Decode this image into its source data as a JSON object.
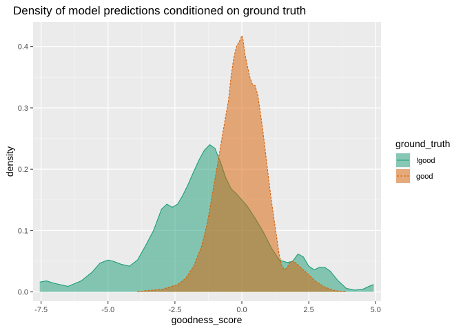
{
  "chart_data": {
    "type": "area",
    "title": "Density of model predictions conditioned on ground truth",
    "xlabel": "goodness_score",
    "ylabel": "density",
    "xlim": [
      -7.8,
      5.2
    ],
    "ylim": [
      -0.015,
      0.44
    ],
    "x_ticks": [
      -7.5,
      -5.0,
      -2.5,
      0.0,
      2.5,
      5.0
    ],
    "x_tick_labels": [
      "-7.5",
      "-5.0",
      "-2.5",
      "0.0",
      "2.5",
      "5.0"
    ],
    "y_ticks": [
      0.0,
      0.1,
      0.2,
      0.3,
      0.4
    ],
    "y_tick_labels": [
      "0.0",
      "0.1",
      "0.2",
      "0.3",
      "0.4"
    ],
    "grid": true,
    "legend": {
      "title": "ground_truth",
      "placement": "right"
    },
    "series": [
      {
        "name": "!good",
        "fill": "#1b9e77",
        "line": "#1b9e77",
        "linetype": "solid",
        "x": [
          -7.55,
          -7.3,
          -7.0,
          -6.5,
          -6.0,
          -5.6,
          -5.3,
          -5.0,
          -4.8,
          -4.5,
          -4.2,
          -3.9,
          -3.6,
          -3.3,
          -3.0,
          -2.8,
          -2.6,
          -2.4,
          -2.2,
          -2.0,
          -1.8,
          -1.6,
          -1.4,
          -1.2,
          -1.0,
          -0.9,
          -0.8,
          -0.6,
          -0.4,
          -0.2,
          0.0,
          0.2,
          0.5,
          0.8,
          1.1,
          1.4,
          1.7,
          1.9,
          2.1,
          2.3,
          2.5,
          2.7,
          2.9,
          3.1,
          3.3,
          3.6,
          3.9,
          4.2,
          4.5,
          4.8,
          4.93
        ],
        "y": [
          0.016,
          0.018,
          0.014,
          0.009,
          0.018,
          0.032,
          0.047,
          0.052,
          0.05,
          0.045,
          0.042,
          0.052,
          0.075,
          0.1,
          0.135,
          0.143,
          0.138,
          0.143,
          0.158,
          0.176,
          0.196,
          0.215,
          0.231,
          0.24,
          0.234,
          0.222,
          0.212,
          0.186,
          0.168,
          0.16,
          0.15,
          0.14,
          0.12,
          0.098,
          0.072,
          0.052,
          0.048,
          0.05,
          0.062,
          0.057,
          0.042,
          0.036,
          0.04,
          0.04,
          0.034,
          0.018,
          0.006,
          0.003,
          0.004,
          0.01,
          0.012
        ]
      },
      {
        "name": "good",
        "fill": "#d95f02",
        "line": "#d95f02",
        "linetype": "dashed",
        "x": [
          -3.9,
          -3.6,
          -3.3,
          -3.0,
          -2.7,
          -2.4,
          -2.1,
          -1.8,
          -1.5,
          -1.3,
          -1.1,
          -0.9,
          -0.7,
          -0.5,
          -0.4,
          -0.3,
          -0.2,
          -0.1,
          -0.05,
          0.0,
          0.05,
          0.1,
          0.2,
          0.3,
          0.4,
          0.5,
          0.6,
          0.7,
          0.8,
          0.9,
          1.0,
          1.1,
          1.2,
          1.3,
          1.4,
          1.5,
          1.6,
          1.7,
          1.8,
          1.9,
          2.0,
          2.2,
          2.5,
          2.8,
          3.1,
          3.4,
          3.7,
          3.9
        ],
        "y": [
          0.0,
          0.002,
          0.003,
          0.004,
          0.008,
          0.012,
          0.022,
          0.042,
          0.075,
          0.11,
          0.16,
          0.21,
          0.262,
          0.312,
          0.352,
          0.382,
          0.4,
          0.408,
          0.412,
          0.418,
          0.41,
          0.392,
          0.37,
          0.35,
          0.338,
          0.336,
          0.32,
          0.29,
          0.258,
          0.222,
          0.185,
          0.15,
          0.12,
          0.09,
          0.06,
          0.042,
          0.036,
          0.04,
          0.048,
          0.05,
          0.048,
          0.04,
          0.028,
          0.016,
          0.008,
          0.003,
          0.001,
          0.0
        ]
      }
    ]
  }
}
